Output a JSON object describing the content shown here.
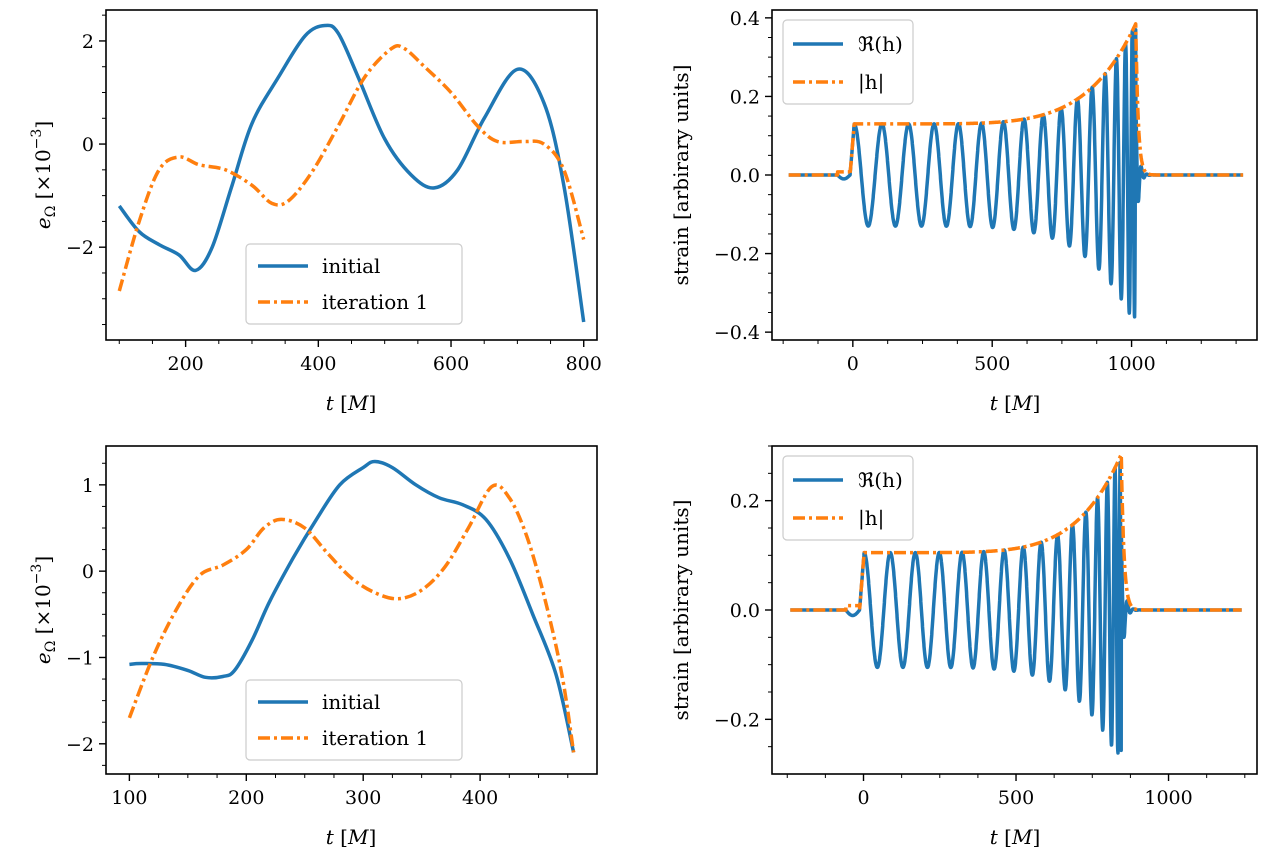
{
  "colors": {
    "initial": "#1f77b4",
    "iteration": "#ff7f0e",
    "real": "#1f77b4",
    "abs": "#ff7f0e"
  },
  "chart_data": [
    {
      "type": "line",
      "panel": "top-left",
      "xlabel": "t [M]",
      "ylabel": "e_Ω [×10^−3]",
      "xlim": [
        80,
        820
      ],
      "ylim": [
        -3.8,
        2.6
      ],
      "xticks": [
        200,
        400,
        600,
        800
      ],
      "yticks": [
        -2,
        0,
        2
      ],
      "tick_labels_x": [
        "200",
        "400",
        "600",
        "800"
      ],
      "tick_labels_y": [
        "−2",
        "0",
        "2"
      ],
      "legend": "lower-center",
      "legend_entries": [
        "initial",
        "iteration 1"
      ],
      "series": [
        {
          "name": "initial",
          "style": "solid",
          "x": [
            100,
            130,
            160,
            190,
            215,
            240,
            270,
            300,
            340,
            380,
            410,
            430,
            460,
            500,
            540,
            575,
            610,
            650,
            700,
            740,
            770,
            800
          ],
          "y": [
            -1.2,
            -1.7,
            -1.95,
            -2.15,
            -2.45,
            -2.0,
            -0.8,
            0.4,
            1.3,
            2.1,
            2.3,
            2.15,
            1.3,
            0.1,
            -0.6,
            -0.85,
            -0.5,
            0.5,
            1.45,
            0.8,
            -0.8,
            -3.45
          ]
        },
        {
          "name": "iteration 1",
          "style": "dashdot",
          "x": [
            100,
            130,
            160,
            190,
            220,
            260,
            300,
            330,
            355,
            390,
            430,
            470,
            510,
            530,
            560,
            600,
            640,
            670,
            710,
            740,
            770,
            800
          ],
          "y": [
            -2.85,
            -1.5,
            -0.5,
            -0.25,
            -0.4,
            -0.5,
            -0.8,
            -1.15,
            -1.1,
            -0.55,
            0.35,
            1.3,
            1.85,
            1.85,
            1.5,
            1.0,
            0.35,
            0.05,
            0.05,
            0.0,
            -0.5,
            -1.85
          ]
        }
      ]
    },
    {
      "type": "line",
      "panel": "top-right",
      "xlabel": "t [M]",
      "ylabel": "strain [arbirary units]",
      "xlim": [
        -290,
        1450
      ],
      "ylim": [
        -0.42,
        0.42
      ],
      "xticks": [
        0,
        500,
        1000
      ],
      "yticks": [
        -0.4,
        -0.2,
        0.0,
        0.2,
        0.4
      ],
      "tick_labels_x": [
        "0",
        "500",
        "1000"
      ],
      "tick_labels_y": [
        "−0.4",
        "−0.2",
        "0.0",
        "0.2",
        "0.4"
      ],
      "legend": "top-left",
      "legend_entries": [
        "ℜ(h)",
        "|h|"
      ],
      "waveform": {
        "t_start": -230,
        "t_jump": 5,
        "t_merger": 1015,
        "t_end": 1400,
        "amp_start": 0.13,
        "amp_peak": 0.385,
        "phase_cycles": 16,
        "neg_peak": -0.37
      }
    },
    {
      "type": "line",
      "panel": "bottom-left",
      "xlabel": "t [M]",
      "ylabel": "e_Ω [×10^−3]",
      "xlim": [
        80,
        500
      ],
      "ylim": [
        -2.35,
        1.45
      ],
      "xticks": [
        100,
        200,
        300,
        400
      ],
      "yticks": [
        -2,
        -1,
        0,
        1
      ],
      "tick_labels_x": [
        "100",
        "200",
        "300",
        "400"
      ],
      "tick_labels_y": [
        "−2",
        "−1",
        "0",
        "1"
      ],
      "legend": "lower-center",
      "legend_entries": [
        "initial",
        "iteration 1"
      ],
      "series": [
        {
          "name": "initial",
          "style": "solid",
          "x": [
            100,
            110,
            130,
            150,
            165,
            180,
            190,
            205,
            220,
            240,
            260,
            280,
            300,
            310,
            325,
            345,
            365,
            385,
            405,
            425,
            445,
            465,
            480
          ],
          "y": [
            -1.08,
            -1.07,
            -1.08,
            -1.15,
            -1.23,
            -1.22,
            -1.15,
            -0.8,
            -0.35,
            0.15,
            0.6,
            1.0,
            1.2,
            1.27,
            1.2,
            1.0,
            0.85,
            0.77,
            0.6,
            0.15,
            -0.5,
            -1.2,
            -2.1
          ]
        },
        {
          "name": "iteration 1",
          "style": "dashdot",
          "x": [
            100,
            120,
            140,
            160,
            180,
            200,
            215,
            230,
            250,
            270,
            290,
            310,
            330,
            350,
            370,
            390,
            410,
            425,
            440,
            455,
            470,
            480
          ],
          "y": [
            -1.7,
            -1.0,
            -0.45,
            -0.05,
            0.07,
            0.25,
            0.5,
            0.6,
            0.5,
            0.2,
            -0.08,
            -0.25,
            -0.32,
            -0.22,
            0.05,
            0.5,
            0.98,
            0.85,
            0.4,
            -0.3,
            -1.2,
            -2.1
          ]
        }
      ]
    },
    {
      "type": "line",
      "panel": "bottom-right",
      "xlabel": "t [M]",
      "ylabel": "strain [arbirary units]",
      "xlim": [
        -300,
        1290
      ],
      "ylim": [
        -0.3,
        0.3
      ],
      "xticks": [
        0,
        500,
        1000
      ],
      "yticks": [
        -0.2,
        0.0,
        0.2
      ],
      "tick_labels_x": [
        "0",
        "500",
        "1000"
      ],
      "tick_labels_y": [
        "−0.2",
        "0.0",
        "0.2"
      ],
      "legend": "top-left",
      "legend_entries": [
        "ℜ(h)",
        "|h|"
      ],
      "waveform": {
        "t_start": -240,
        "t_jump": 2,
        "t_merger": 845,
        "t_end": 1240,
        "amp_start": 0.105,
        "amp_peak": 0.285,
        "phase_cycles": 15.5,
        "neg_peak": -0.275
      }
    }
  ]
}
